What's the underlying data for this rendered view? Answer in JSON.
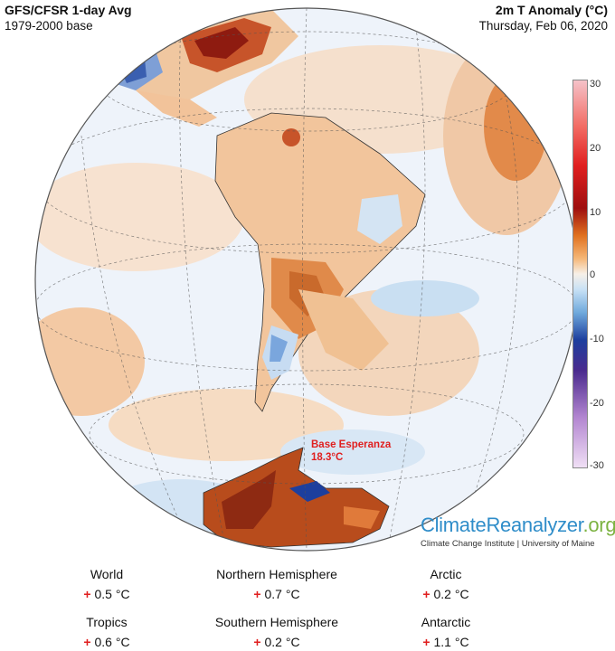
{
  "header": {
    "source": "GFS/CFSR 1-day Avg",
    "base": "1979-2000 base",
    "variable": "2m T Anomaly (°C)",
    "date": "Thursday, Feb 06, 2020"
  },
  "colorbar": {
    "ticks": [
      "30",
      "20",
      "10",
      "0",
      "-10",
      "-20",
      "-30"
    ],
    "colors": [
      "#f5c2c9",
      "#e01f1f",
      "#9e0f0f",
      "#e0701e",
      "#f7f0e8",
      "#6fa9dc",
      "#1d3f9e",
      "#b285d0",
      "#f0dff5"
    ]
  },
  "annotation": {
    "place": "Base Esperanza",
    "value": "18.3°C"
  },
  "brand": {
    "name_part1": "ClimateReanalyzer",
    "name_part2": ".org",
    "subtitle": "Climate Change Institute | University of Maine"
  },
  "stats": [
    {
      "label": "World",
      "sign": "+",
      "value": "0.5 °C"
    },
    {
      "label": "Northern Hemisphere",
      "sign": "+",
      "value": "0.7 °C"
    },
    {
      "label": "Arctic",
      "sign": "+",
      "value": "0.2 °C"
    },
    {
      "label": "Tropics",
      "sign": "+",
      "value": "0.6 °C"
    },
    {
      "label": "Southern Hemisphere",
      "sign": "+",
      "value": "0.2 °C"
    },
    {
      "label": "Antarctic",
      "sign": "+",
      "value": "1.1 °C"
    }
  ]
}
